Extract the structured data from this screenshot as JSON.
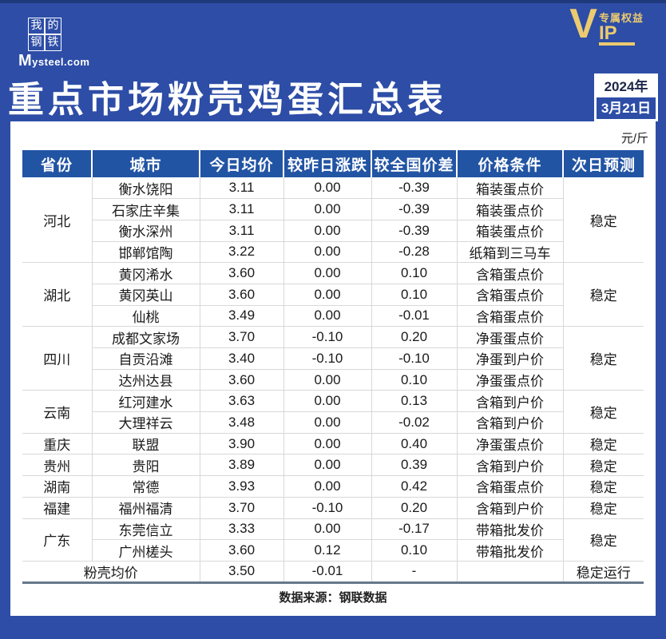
{
  "brand": {
    "logo_chars": [
      "我",
      "的",
      "钢",
      "铁"
    ],
    "logo_domain_m": "M",
    "logo_domain_rest": "ysteel.com"
  },
  "vip": {
    "v": "V",
    "ip": "IP",
    "tagline": "专属权益"
  },
  "header": {
    "title": "重点市场粉壳鸡蛋汇总表",
    "date_year": "2024年",
    "date_day": "3月21日",
    "unit": "元/斤"
  },
  "colors": {
    "banner_blue": "#2d4da6",
    "table_header_blue": "#2254a4",
    "vip_gold": "#ecca70",
    "up_red": "#c23a32",
    "down_green": "#2a9d63"
  },
  "table": {
    "columns": [
      "省份",
      "城市",
      "今日均价",
      "较昨日涨跌",
      "较全国价差",
      "价格条件",
      "次日预测"
    ],
    "groups": [
      {
        "province": "河北",
        "forecast": "稳定",
        "rows": [
          {
            "city": "衡水饶阳",
            "price": "3.11",
            "change": "0.00",
            "change_dir": "flat",
            "diff": "-0.39",
            "diff_dir": "down",
            "condition": "箱装蛋点价"
          },
          {
            "city": "石家庄辛集",
            "price": "3.11",
            "change": "0.00",
            "change_dir": "flat",
            "diff": "-0.39",
            "diff_dir": "down",
            "condition": "箱装蛋点价"
          },
          {
            "city": "衡水深州",
            "price": "3.11",
            "change": "0.00",
            "change_dir": "flat",
            "diff": "-0.39",
            "diff_dir": "down",
            "condition": "箱装蛋点价"
          },
          {
            "city": "邯郸馆陶",
            "price": "3.22",
            "change": "0.00",
            "change_dir": "flat",
            "diff": "-0.28",
            "diff_dir": "down",
            "condition": "纸箱到三马车"
          }
        ]
      },
      {
        "province": "湖北",
        "forecast": "稳定",
        "rows": [
          {
            "city": "黄冈浠水",
            "price": "3.60",
            "change": "0.00",
            "change_dir": "flat",
            "diff": "0.10",
            "diff_dir": "up",
            "condition": "含箱蛋点价"
          },
          {
            "city": "黄冈英山",
            "price": "3.60",
            "change": "0.00",
            "change_dir": "flat",
            "diff": "0.10",
            "diff_dir": "up",
            "condition": "含箱蛋点价"
          },
          {
            "city": "仙桃",
            "price": "3.49",
            "change": "0.00",
            "change_dir": "flat",
            "diff": "-0.01",
            "diff_dir": "down",
            "condition": "含箱蛋点价"
          }
        ]
      },
      {
        "province": "四川",
        "forecast": "稳定",
        "rows": [
          {
            "city": "成都文家场",
            "price": "3.70",
            "change": "-0.10",
            "change_dir": "down",
            "diff": "0.20",
            "diff_dir": "up",
            "condition": "净蛋蛋点价"
          },
          {
            "city": "自贡沿滩",
            "price": "3.40",
            "change": "-0.10",
            "change_dir": "down",
            "diff": "-0.10",
            "diff_dir": "down",
            "condition": "净蛋到户价"
          },
          {
            "city": "达州达县",
            "price": "3.60",
            "change": "0.00",
            "change_dir": "flat",
            "diff": "0.10",
            "diff_dir": "up",
            "condition": "净蛋蛋点价"
          }
        ]
      },
      {
        "province": "云南",
        "forecast": "稳定",
        "rows": [
          {
            "city": "红河建水",
            "price": "3.63",
            "change": "0.00",
            "change_dir": "flat",
            "diff": "0.13",
            "diff_dir": "up",
            "condition": "含箱到户价"
          },
          {
            "city": "大理祥云",
            "price": "3.48",
            "change": "0.00",
            "change_dir": "flat",
            "diff": "-0.02",
            "diff_dir": "down",
            "condition": "含箱到户价"
          }
        ]
      },
      {
        "province": "重庆",
        "forecast": "稳定",
        "rows": [
          {
            "city": "联盟",
            "price": "3.90",
            "change": "0.00",
            "change_dir": "flat",
            "diff": "0.40",
            "diff_dir": "up",
            "condition": "净蛋蛋点价"
          }
        ]
      },
      {
        "province": "贵州",
        "forecast": "稳定",
        "rows": [
          {
            "city": "贵阳",
            "price": "3.89",
            "change": "0.00",
            "change_dir": "flat",
            "diff": "0.39",
            "diff_dir": "up",
            "condition": "含箱到户价"
          }
        ]
      },
      {
        "province": "湖南",
        "forecast": "稳定",
        "rows": [
          {
            "city": "常德",
            "price": "3.93",
            "change": "0.00",
            "change_dir": "flat",
            "diff": "0.42",
            "diff_dir": "up",
            "condition": "含箱蛋点价"
          }
        ]
      },
      {
        "province": "福建",
        "forecast": "稳定",
        "rows": [
          {
            "city": "福州福清",
            "price": "3.70",
            "change": "-0.10",
            "change_dir": "down",
            "diff": "0.20",
            "diff_dir": "up",
            "condition": "含箱到户价"
          }
        ]
      },
      {
        "province": "广东",
        "forecast": "稳定",
        "rows": [
          {
            "city": "东莞信立",
            "price": "3.33",
            "change": "0.00",
            "change_dir": "flat",
            "diff": "-0.17",
            "diff_dir": "down",
            "condition": "带箱批发价"
          },
          {
            "city": "广州槎头",
            "price": "3.60",
            "change": "0.12",
            "change_dir": "up",
            "diff": "0.10",
            "diff_dir": "up",
            "condition": "带箱批发价"
          }
        ]
      }
    ],
    "summary": {
      "label": "粉壳均价",
      "price": "3.50",
      "change": "-0.01",
      "change_dir": "down",
      "diff": "-",
      "diff_dir": "flat",
      "condition": "",
      "forecast": "稳定运行"
    }
  },
  "footer": {
    "source": "数据来源：钢联数据"
  },
  "chart_data": {
    "type": "table",
    "title": "重点市场粉壳鸡蛋汇总表",
    "unit": "元/斤",
    "date": "2024年3月21日",
    "columns": [
      "省份",
      "城市",
      "今日均价",
      "较昨日涨跌",
      "较全国价差",
      "价格条件",
      "次日预测"
    ],
    "rows": [
      [
        "河北",
        "衡水饶阳",
        3.11,
        0.0,
        -0.39,
        "箱装蛋点价",
        "稳定"
      ],
      [
        "河北",
        "石家庄辛集",
        3.11,
        0.0,
        -0.39,
        "箱装蛋点价",
        "稳定"
      ],
      [
        "河北",
        "衡水深州",
        3.11,
        0.0,
        -0.39,
        "箱装蛋点价",
        "稳定"
      ],
      [
        "河北",
        "邯郸馆陶",
        3.22,
        0.0,
        -0.28,
        "纸箱到三马车",
        "稳定"
      ],
      [
        "湖北",
        "黄冈浠水",
        3.6,
        0.0,
        0.1,
        "含箱蛋点价",
        "稳定"
      ],
      [
        "湖北",
        "黄冈英山",
        3.6,
        0.0,
        0.1,
        "含箱蛋点价",
        "稳定"
      ],
      [
        "湖北",
        "仙桃",
        3.49,
        0.0,
        -0.01,
        "含箱蛋点价",
        "稳定"
      ],
      [
        "四川",
        "成都文家场",
        3.7,
        -0.1,
        0.2,
        "净蛋蛋点价",
        "稳定"
      ],
      [
        "四川",
        "自贡沿滩",
        3.4,
        -0.1,
        -0.1,
        "净蛋到户价",
        "稳定"
      ],
      [
        "四川",
        "达州达县",
        3.6,
        0.0,
        0.1,
        "净蛋蛋点价",
        "稳定"
      ],
      [
        "云南",
        "红河建水",
        3.63,
        0.0,
        0.13,
        "含箱到户价",
        "稳定"
      ],
      [
        "云南",
        "大理祥云",
        3.48,
        0.0,
        -0.02,
        "含箱到户价",
        "稳定"
      ],
      [
        "重庆",
        "联盟",
        3.9,
        0.0,
        0.4,
        "净蛋蛋点价",
        "稳定"
      ],
      [
        "贵州",
        "贵阳",
        3.89,
        0.0,
        0.39,
        "含箱到户价",
        "稳定"
      ],
      [
        "湖南",
        "常德",
        3.93,
        0.0,
        0.42,
        "含箱蛋点价",
        "稳定"
      ],
      [
        "福建",
        "福州福清",
        3.7,
        -0.1,
        0.2,
        "含箱到户价",
        "稳定"
      ],
      [
        "广东",
        "东莞信立",
        3.33,
        0.0,
        -0.17,
        "带箱批发价",
        "稳定"
      ],
      [
        "广东",
        "广州槎头",
        3.6,
        0.12,
        0.1,
        "带箱批发价",
        "稳定"
      ],
      [
        "",
        "粉壳均价",
        3.5,
        -0.01,
        "-",
        "",
        "稳定运行"
      ]
    ]
  }
}
